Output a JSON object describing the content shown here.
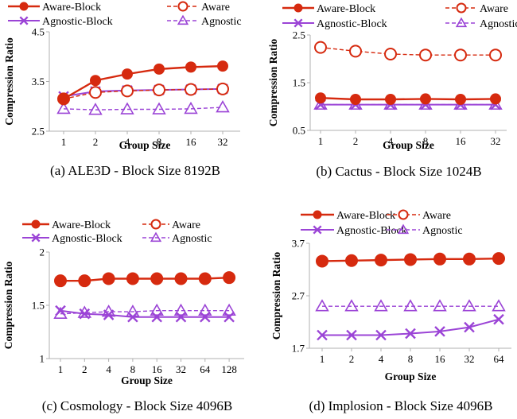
{
  "colors": {
    "aware": "#d62a0f",
    "agnostic": "#9b44d6",
    "axis": "#b0b0b0",
    "text": "#000000"
  },
  "legend_labels": [
    "Aware-Block",
    "Aware",
    "Agnostic-Block",
    "Agnostic"
  ],
  "chart_data": [
    {
      "type": "line",
      "caption": "(a) ALE3D - Block Size 8192B",
      "xlabel": "Group Size",
      "ylabel": "Compression Ratio",
      "categories": [
        "1",
        "2",
        "4",
        "8",
        "16",
        "32"
      ],
      "ylim": [
        2.5,
        4.5
      ],
      "yticks": [
        "2.5",
        "3.5",
        "4.5"
      ],
      "yticks_values": [
        2.5,
        3.5,
        4.5
      ],
      "grid": false,
      "legend": "top",
      "series": [
        {
          "name": "Aware-Block",
          "values": [
            3.15,
            3.52,
            3.65,
            3.75,
            3.79,
            3.81
          ]
        },
        {
          "name": "Aware",
          "values": [
            3.15,
            3.28,
            3.31,
            3.33,
            3.34,
            3.35
          ]
        },
        {
          "name": "Agnostic-Block",
          "values": [
            3.2,
            3.3,
            3.32,
            3.33,
            3.34,
            3.35
          ]
        },
        {
          "name": "Agnostic",
          "values": [
            2.95,
            2.93,
            2.94,
            2.94,
            2.95,
            2.98
          ]
        }
      ]
    },
    {
      "type": "line",
      "caption": "(b) Cactus - Block Size 1024B",
      "xlabel": "Group Size",
      "ylabel": "Compression Ratio",
      "categories": [
        "1",
        "2",
        "4",
        "8",
        "16",
        "32"
      ],
      "ylim": [
        0.5,
        2.5
      ],
      "yticks": [
        "0.5",
        "1.5",
        "2.5"
      ],
      "yticks_values": [
        0.5,
        1.5,
        2.5
      ],
      "grid": false,
      "legend": "top",
      "series": [
        {
          "name": "Aware-Block",
          "values": [
            1.18,
            1.15,
            1.15,
            1.16,
            1.15,
            1.16
          ]
        },
        {
          "name": "Aware",
          "values": [
            2.24,
            2.16,
            2.1,
            2.08,
            2.08,
            2.08
          ]
        },
        {
          "name": "Agnostic-Block",
          "values": [
            1.04,
            1.04,
            1.04,
            1.04,
            1.04,
            1.04
          ]
        },
        {
          "name": "Agnostic",
          "values": [
            1.04,
            1.04,
            1.04,
            1.04,
            1.04,
            1.04
          ]
        }
      ]
    },
    {
      "type": "line",
      "caption": "(c) Cosmology - Block Size 4096B",
      "xlabel": "Group Size",
      "ylabel": "Compression Ratio",
      "categories": [
        "1",
        "2",
        "4",
        "8",
        "16",
        "32",
        "64",
        "128"
      ],
      "ylim": [
        1,
        2
      ],
      "yticks": [
        "1",
        "1.5",
        "2"
      ],
      "yticks_values": [
        1,
        1.5,
        2
      ],
      "grid": false,
      "legend": "top",
      "series": [
        {
          "name": "Aware-Block",
          "values": [
            1.73,
            1.73,
            1.75,
            1.75,
            1.75,
            1.75,
            1.75,
            1.76
          ]
        },
        {
          "name": "Aware",
          "values": [
            1.73,
            1.73,
            1.75,
            1.75,
            1.75,
            1.75,
            1.75,
            1.76
          ]
        },
        {
          "name": "Agnostic-Block",
          "values": [
            1.45,
            1.42,
            1.41,
            1.39,
            1.39,
            1.39,
            1.39,
            1.39
          ]
        },
        {
          "name": "Agnostic",
          "values": [
            1.42,
            1.43,
            1.44,
            1.44,
            1.45,
            1.45,
            1.45,
            1.45
          ]
        }
      ]
    },
    {
      "type": "line",
      "caption": "(d) Implosion - Block Size 4096B",
      "xlabel": "Group Size",
      "ylabel": "Compression Ratio",
      "categories": [
        "1",
        "2",
        "4",
        "8",
        "16",
        "32",
        "64"
      ],
      "ylim": [
        1.7,
        3.7
      ],
      "yticks": [
        "1.7",
        "2.7",
        "3.7"
      ],
      "yticks_values": [
        1.7,
        2.7,
        3.7
      ],
      "grid": false,
      "legend": "top",
      "series": [
        {
          "name": "Aware-Block",
          "values": [
            3.36,
            3.37,
            3.38,
            3.39,
            3.4,
            3.4,
            3.41
          ]
        },
        {
          "name": "Aware",
          "values": [
            3.36,
            3.37,
            3.38,
            3.39,
            3.4,
            3.4,
            3.41
          ]
        },
        {
          "name": "Agnostic-Block",
          "values": [
            1.95,
            1.95,
            1.95,
            1.98,
            2.02,
            2.1,
            2.25
          ]
        },
        {
          "name": "Agnostic",
          "values": [
            2.5,
            2.5,
            2.5,
            2.5,
            2.5,
            2.5,
            2.5
          ]
        }
      ]
    }
  ]
}
